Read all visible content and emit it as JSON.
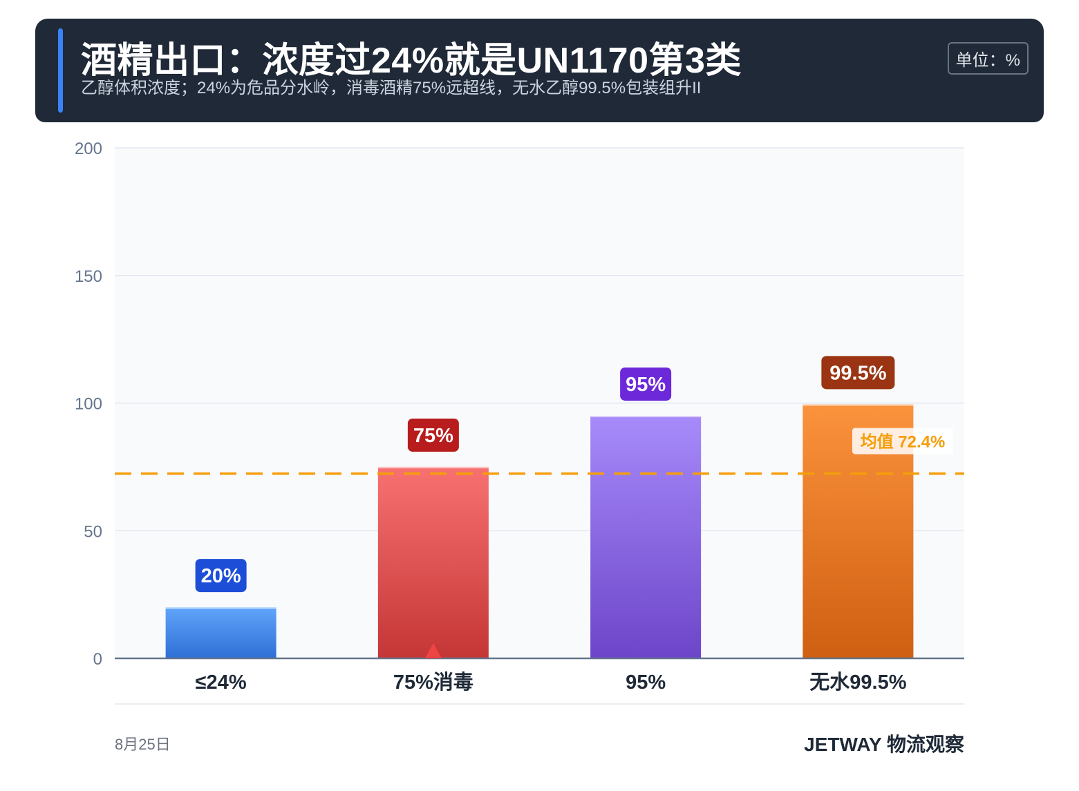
{
  "header": {
    "title": "酒精出口：浓度过24%就是UN1170第3类",
    "subtitle": "乙醇体积浓度；24%为危品分水岭，消毒酒精75%远超线，无水乙醇99.5%包装组升II",
    "unit": "单位：%"
  },
  "chart_data": {
    "type": "bar",
    "categories": [
      "≤24%",
      "75%消毒",
      "95%",
      "无水99.5%"
    ],
    "values": [
      20,
      75,
      95,
      99.5
    ],
    "data_labels": [
      "20%",
      "75%",
      "95%",
      "99.5%"
    ],
    "ylim": [
      0,
      200
    ],
    "yticks": [
      0,
      50,
      100,
      150,
      200
    ],
    "ytick_labels": [
      "0",
      "50",
      "100",
      "150",
      "200"
    ],
    "grid": true,
    "mean_line": {
      "value": 72.4,
      "label": "均值 72.4%",
      "color": "#f59e0b"
    },
    "highlight_marker_category_index": 1,
    "bar_colors": [
      {
        "top": "#60a5fa",
        "bottom": "#2f6fd6",
        "label_bg": "#1d4ed8"
      },
      {
        "top": "#f87171",
        "bottom": "#c53636",
        "label_bg": "#b91c1c"
      },
      {
        "top": "#a78bfa",
        "bottom": "#6d45c9",
        "label_bg": "#6d28d9"
      },
      {
        "top": "#fb923c",
        "bottom": "#cf5f12",
        "label_bg": "#9a3412"
      }
    ]
  },
  "footer": {
    "date": "8月25日",
    "brand": "JETWAY 物流观察"
  }
}
